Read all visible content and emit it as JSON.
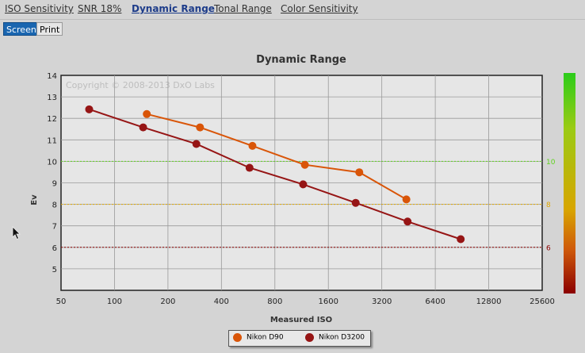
{
  "tabs": [
    {
      "label": "ISO Sensitivity",
      "active": false
    },
    {
      "label": "SNR 18%",
      "active": false
    },
    {
      "label": "Dynamic Range",
      "active": true
    },
    {
      "label": "Tonal Range",
      "active": false
    },
    {
      "label": "Color Sensitivity",
      "active": false
    }
  ],
  "modes": {
    "screen_label": "Screen",
    "print_label": "Print",
    "selected": "Screen"
  },
  "chart_data": {
    "type": "line",
    "title": "Dynamic Range",
    "xlabel": "Measured ISO",
    "ylabel": "Ev",
    "x_scale": "log2",
    "x_ticks": [
      50,
      100,
      200,
      400,
      800,
      1600,
      3200,
      6400,
      12800,
      25600
    ],
    "xlim": [
      50,
      25600
    ],
    "ylim": [
      4,
      14
    ],
    "y_ticks": [
      5,
      6,
      7,
      8,
      9,
      10,
      11,
      12,
      13,
      14
    ],
    "grid": true,
    "watermark": "Copyright © 2008-2013 DxO Labs",
    "reference_lines": [
      {
        "y": 10,
        "label": "10",
        "color": "#5fd31e"
      },
      {
        "y": 8,
        "label": "8",
        "color": "#e0a800"
      },
      {
        "y": 6,
        "label": "6",
        "color": "#8b0000"
      }
    ],
    "colorbar": {
      "colors": [
        "#2bcc1a",
        "#9acb14",
        "#d8a500",
        "#cf5a0a",
        "#8b0000"
      ]
    },
    "legend_position": "bottom",
    "series": [
      {
        "name": "Nikon D90",
        "color": "#d95508",
        "points": [
          [
            152,
            12.2
          ],
          [
            303,
            11.58
          ],
          [
            598,
            10.72
          ],
          [
            1180,
            9.84
          ],
          [
            2390,
            9.49
          ],
          [
            4400,
            8.23
          ]
        ]
      },
      {
        "name": "Nikon D3200",
        "color": "#961515",
        "points": [
          [
            72,
            12.42
          ],
          [
            145,
            11.58
          ],
          [
            289,
            10.81
          ],
          [
            576,
            9.7
          ],
          [
            1154,
            8.93
          ],
          [
            2280,
            8.07
          ],
          [
            4470,
            7.2
          ],
          [
            8900,
            6.38
          ]
        ]
      }
    ]
  }
}
